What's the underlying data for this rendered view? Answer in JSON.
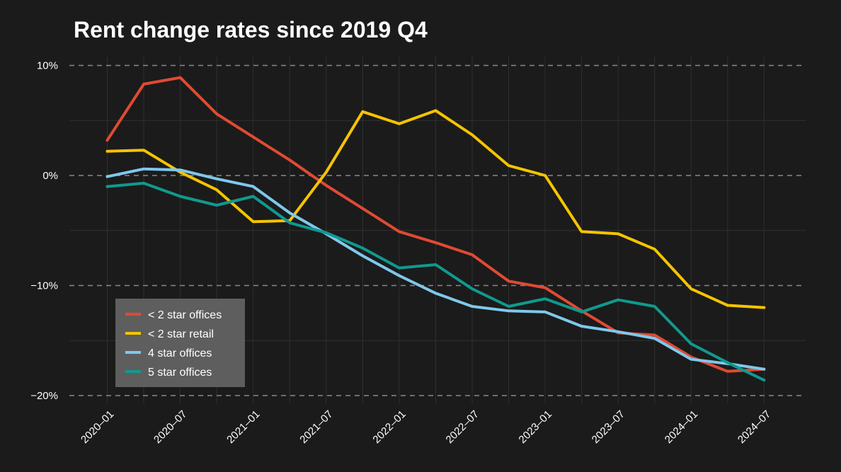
{
  "chart_data": {
    "type": "line",
    "title": "Rent change rates since 2019 Q4",
    "xlabel": "",
    "ylabel": "",
    "x": [
      "2020-01",
      "2020-04",
      "2020-07",
      "2020-10",
      "2021-01",
      "2021-04",
      "2021-07",
      "2021-10",
      "2022-01",
      "2022-04",
      "2022-07",
      "2022-10",
      "2023-01",
      "2023-04",
      "2023-07",
      "2023-10",
      "2024-01",
      "2024-04",
      "2024-07"
    ],
    "x_tick_labels": [
      "2020–01",
      "2020–07",
      "2021–01",
      "2021–07",
      "2022–01",
      "2022–07",
      "2023–01",
      "2023–07",
      "2024–01",
      "2024–07"
    ],
    "x_tick_values": [
      "2020-01",
      "2020-07",
      "2021-01",
      "2021-07",
      "2022-01",
      "2022-07",
      "2023-01",
      "2023-07",
      "2024-01",
      "2024-07"
    ],
    "y_tick_labels": [
      "10%",
      "0%",
      "−10%",
      "−20%"
    ],
    "y_tick_values": [
      10,
      0,
      -10,
      -20
    ],
    "y_minor_grid": [
      5,
      -5,
      -15
    ],
    "ylim": [
      -20.5,
      11
    ],
    "grid": true,
    "legend_position": "bottom-left",
    "series": [
      {
        "name": "< 2 star offices",
        "color": "#e04a33",
        "values": [
          3.2,
          8.3,
          8.9,
          5.6,
          3.5,
          1.4,
          -0.9,
          -3.0,
          -5.1,
          -6.1,
          -7.2,
          -9.6,
          -10.2,
          -12.3,
          -14.3,
          -14.5,
          -16.5,
          -17.8,
          -17.6
        ]
      },
      {
        "name": "< 2 star retail",
        "color": "#f5c400",
        "values": [
          2.2,
          2.3,
          0.3,
          -1.3,
          -4.2,
          -4.1,
          0.3,
          5.8,
          4.7,
          5.9,
          3.7,
          0.9,
          0.0,
          -5.1,
          -5.3,
          -6.7,
          -10.3,
          -11.8,
          -12.0
        ]
      },
      {
        "name": "4 star offices",
        "color": "#7fc8ec",
        "values": [
          -0.1,
          0.6,
          0.5,
          -0.3,
          -1.0,
          -3.4,
          -5.3,
          -7.3,
          -9.1,
          -10.7,
          -11.9,
          -12.3,
          -12.4,
          -13.7,
          -14.2,
          -14.8,
          -16.7,
          -17.1,
          -17.6
        ]
      },
      {
        "name": "5 star offices",
        "color": "#11998e",
        "values": [
          -1.0,
          -0.7,
          -1.9,
          -2.7,
          -1.9,
          -4.3,
          -5.2,
          -6.6,
          -8.4,
          -8.1,
          -10.3,
          -11.9,
          -11.2,
          -12.4,
          -11.3,
          -11.9,
          -15.3,
          -17.0,
          -18.6
        ]
      }
    ]
  }
}
